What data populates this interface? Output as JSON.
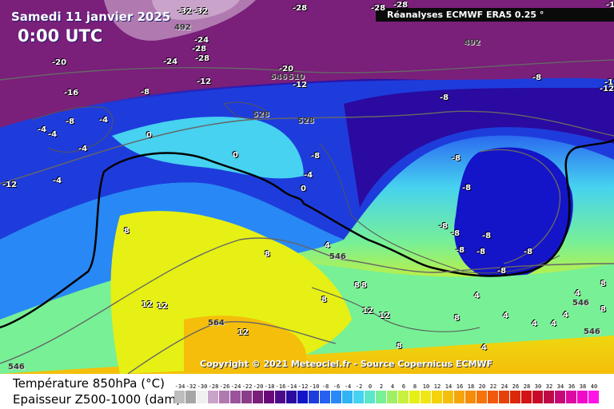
{
  "header": {
    "date": "Samedi 11 janvier 2025",
    "time": "0:00 UTC",
    "source": "Réanalyses ECMWF ERA5 0.25 °"
  },
  "footer": {
    "copyright": "Copyright © 2021 Meteociel.fr - Source Copernicus ECMWF"
  },
  "legend": {
    "title_temperature": "Température 850hPa (°C)",
    "title_thickness": "Epaisseur Z500-1000 (dam)",
    "ticks": [
      "-34",
      "-32",
      "-30",
      "-28",
      "-26",
      "-24",
      "-22",
      "-20",
      "-18",
      "-16",
      "-14",
      "-12",
      "-10",
      "-8",
      "-6",
      "-4",
      "-2",
      "0",
      "2",
      "4",
      "6",
      "8",
      "10",
      "12",
      "14",
      "16",
      "18",
      "20",
      "22",
      "24",
      "26",
      "28",
      "30",
      "32",
      "34",
      "36",
      "38",
      "40"
    ],
    "colors": [
      "#bdbdbd",
      "#a6a6a6",
      "#f0f0f0",
      "#c9a3c9",
      "#b07ab0",
      "#9b549b",
      "#8b3d8b",
      "#7a1f7a",
      "#6a0a7a",
      "#4d0a8a",
      "#2a0aa0",
      "#1414c8",
      "#1e3cdc",
      "#2860f0",
      "#2888f5",
      "#30b4f5",
      "#46d2f0",
      "#5ae6c8",
      "#78f096",
      "#a0f064",
      "#c8f03c",
      "#e6f014",
      "#f0e614",
      "#f5d20a",
      "#f5be0a",
      "#f5a50a",
      "#f58c0a",
      "#f5730a",
      "#f05a0a",
      "#e6410a",
      "#dc280a",
      "#d21414",
      "#c80a28",
      "#be0a46",
      "#c80a78",
      "#dc0aa0",
      "#f00ac8",
      "#ff14e6"
    ]
  },
  "temperature_labels": [
    "-32",
    "-32",
    "-28",
    "-28",
    "-28",
    "-24",
    "-28",
    "-28",
    "-24",
    "-20",
    "-20",
    "-12",
    "-12",
    "-16",
    "-8",
    "-8",
    "-4",
    "-4",
    "-4",
    "-4",
    "-4",
    "0",
    "0",
    "-8",
    "-8",
    "-8",
    "-8",
    "-8",
    "-8",
    "-8",
    "-8",
    "-8",
    "-8",
    "-8",
    "-12",
    "-12",
    "0",
    "-12",
    "-4",
    "-8",
    "8",
    "4",
    "8",
    "8",
    "8",
    "12",
    "12",
    "12",
    "12",
    "12",
    "8",
    "4",
    "4",
    "4",
    "4",
    "4",
    "8",
    "8",
    "4",
    "8",
    "8",
    "4",
    "-1"
  ],
  "thickness_labels": [
    "492",
    "492",
    "528",
    "528",
    "510",
    "546",
    "564",
    "546",
    "546",
    "546",
    "546"
  ]
}
